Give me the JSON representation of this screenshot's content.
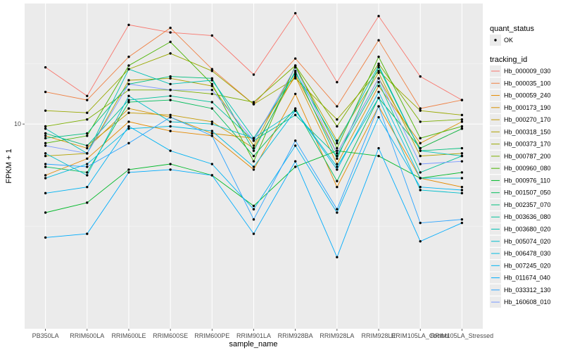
{
  "chart_data": {
    "type": "line",
    "xlabel": "sample_name",
    "ylabel": "FPKM + 1",
    "y_scale": "log10",
    "ylim": [
      4.1,
      16.9
    ],
    "y_ticks": [
      {
        "value": 10,
        "label": "10"
      }
    ],
    "grid": true,
    "legend_position": "right",
    "categories": [
      "PB350LA",
      "RRIM600LA",
      "RRIM600LE",
      "RRIM600SE",
      "RRIM600PE",
      "RRIM901LA",
      "RRIM928BA",
      "RRIM928LA",
      "RRIM928LE",
      "RRIM105LA_Control",
      "RRIM105LA_Stressed"
    ],
    "quant_status_legend": {
      "title": "quant_status",
      "entries": [
        "OK"
      ]
    },
    "series_legend_title": "tracking_id",
    "series": [
      {
        "name": "Hb_000009_030",
        "color": "#F8766D",
        "values": [
          12.8,
          11.3,
          15.4,
          14.9,
          14.7,
          12.4,
          16.2,
          12.0,
          16.0,
          12.3,
          11.1
        ]
      },
      {
        "name": "Hb_000035_100",
        "color": "#EE8043",
        "values": [
          11.5,
          11.1,
          13.4,
          15.2,
          12.7,
          10.9,
          13.3,
          10.8,
          14.4,
          10.7,
          11.1
        ]
      },
      {
        "name": "Hb_000059_240",
        "color": "#E38900",
        "values": [
          8.0,
          8.6,
          10.1,
          9.7,
          9.5,
          8.2,
          11.4,
          7.6,
          10.8,
          7.9,
          7.6
        ]
      },
      {
        "name": "Hb_000173_190",
        "color": "#D59100",
        "values": [
          9.5,
          9.0,
          10.7,
          10.3,
          9.6,
          9.4,
          12.3,
          8.4,
          11.8,
          9.2,
          10.1
        ]
      },
      {
        "name": "Hb_000270_170",
        "color": "#C49A00",
        "values": [
          9.6,
          9.1,
          10.5,
          10.4,
          10.1,
          9.0,
          12.4,
          8.8,
          12.2,
          9.0,
          9.8
        ]
      },
      {
        "name": "Hb_000318_150",
        "color": "#B0A100",
        "values": [
          8.7,
          8.8,
          12.1,
          12.2,
          11.8,
          9.1,
          12.8,
          9.3,
          12.5,
          8.7,
          8.8
        ]
      },
      {
        "name": "Hb_000373_170",
        "color": "#99A800",
        "values": [
          10.6,
          10.5,
          12.7,
          13.6,
          12.6,
          10.9,
          12.2,
          10.2,
          12.6,
          10.6,
          10.4
        ]
      },
      {
        "name": "Hb_000787_200",
        "color": "#7CAE00",
        "values": [
          9.9,
          10.2,
          11.6,
          11.6,
          11.4,
          11.0,
          12.9,
          9.9,
          13.0,
          10.1,
          10.2
        ]
      },
      {
        "name": "Hb_000960_080",
        "color": "#49B400",
        "values": [
          9.2,
          9.5,
          12.9,
          14.3,
          11.9,
          8.5,
          12.9,
          9.0,
          13.4,
          9.4,
          9.9
        ]
      },
      {
        "name": "Hb_000976_110",
        "color": "#00B929",
        "values": [
          6.8,
          7.1,
          8.2,
          8.4,
          8.0,
          7.0,
          8.3,
          8.9,
          8.7,
          7.9,
          8.1
        ]
      },
      {
        "name": "Hb_001507_050",
        "color": "#00BC5A",
        "values": [
          8.3,
          8.1,
          11.0,
          11.1,
          10.7,
          8.7,
          10.7,
          7.8,
          11.2,
          9.0,
          9.8
        ]
      },
      {
        "name": "Hb_002357_070",
        "color": "#00BF7D",
        "values": [
          9.4,
          9.6,
          11.9,
          12.3,
          12.2,
          8.9,
          12.6,
          8.6,
          12.8,
          8.9,
          9.0
        ]
      },
      {
        "name": "Hb_003636_080",
        "color": "#00C19A",
        "values": [
          9.6,
          9.1,
          11.1,
          11.3,
          11.0,
          9.3,
          10.4,
          8.7,
          12.0,
          8.1,
          8.7
        ]
      },
      {
        "name": "Hb_003680_020",
        "color": "#00C0B4",
        "values": [
          9.8,
          8.8,
          12.7,
          11.9,
          12.1,
          9.4,
          12.5,
          9.2,
          12.9,
          8.9,
          8.7
        ]
      },
      {
        "name": "Hb_005074_020",
        "color": "#00BECC",
        "values": [
          8.8,
          8.0,
          11.3,
          10.1,
          10.0,
          9.4,
          10.6,
          8.3,
          11.2,
          7.5,
          7.4
        ]
      },
      {
        "name": "Hb_006478_030",
        "color": "#00BAE0",
        "values": [
          7.9,
          8.4,
          9.8,
          9.9,
          9.7,
          8.3,
          10.6,
          8.2,
          11.5,
          7.9,
          7.9
        ]
      },
      {
        "name": "Hb_007245_020",
        "color": "#00B3F2",
        "values": [
          7.4,
          7.6,
          9.9,
          8.9,
          8.4,
          6.9,
          9.1,
          6.8,
          10.3,
          7.6,
          7.5
        ]
      },
      {
        "name": "Hb_011674_040",
        "color": "#00ACFC",
        "values": [
          6.1,
          6.2,
          8.1,
          8.2,
          8.0,
          6.2,
          8.5,
          5.6,
          9.0,
          6.0,
          6.5
        ]
      },
      {
        "name": "Hb_033312_130",
        "color": "#29A3FF",
        "values": [
          8.4,
          8.3,
          9.2,
          10.3,
          9.5,
          6.6,
          9.3,
          6.9,
          10.8,
          6.5,
          6.6
        ]
      },
      {
        "name": "Hb_160608_010",
        "color": "#7999FF",
        "values": [
          9.1,
          8.8,
          11.9,
          11.6,
          11.6,
          9.3,
          12.8,
          8.8,
          12.2,
          8.4,
          8.5
        ]
      }
    ]
  }
}
